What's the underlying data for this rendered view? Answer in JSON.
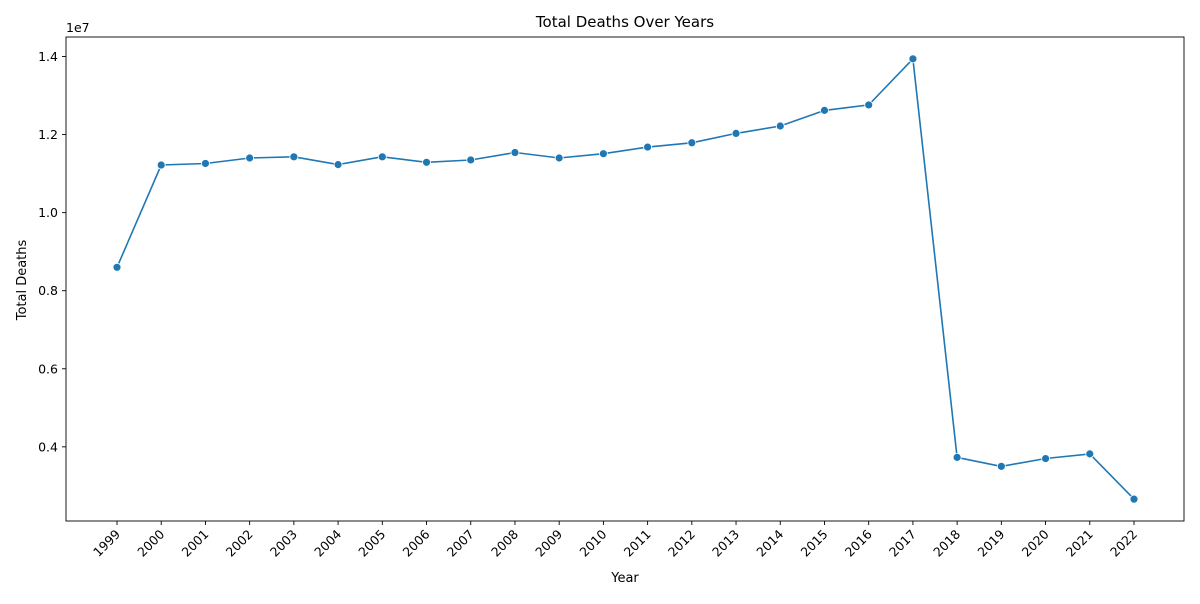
{
  "chart_data": {
    "type": "line",
    "title": "Total Deaths Over Years",
    "xlabel": "Year",
    "ylabel": "Total Deaths",
    "y_offset_label": "1e7",
    "x": [
      "1999",
      "2000",
      "2001",
      "2002",
      "2003",
      "2004",
      "2005",
      "2006",
      "2007",
      "2008",
      "2009",
      "2010",
      "2011",
      "2012",
      "2013",
      "2014",
      "2015",
      "2016",
      "2017",
      "2018",
      "2019",
      "2020",
      "2021",
      "2022"
    ],
    "series": [
      {
        "values": [
          8600000,
          11220000,
          11260000,
          11400000,
          11430000,
          11230000,
          11430000,
          11290000,
          11350000,
          11540000,
          11400000,
          11510000,
          11680000,
          11790000,
          12030000,
          12220000,
          12620000,
          12760000,
          13940000,
          3730000,
          3500000,
          3700000,
          3820000,
          2660000
        ],
        "color": "#1f77b4"
      }
    ],
    "y_ticks": [
      {
        "value": 4000000,
        "label": "0.4"
      },
      {
        "value": 6000000,
        "label": "0.6"
      },
      {
        "value": 8000000,
        "label": "0.8"
      },
      {
        "value": 10000000,
        "label": "1.0"
      },
      {
        "value": 12000000,
        "label": "1.2"
      },
      {
        "value": 14000000,
        "label": "1.4"
      }
    ],
    "ylim": [
      2100000,
      14500000
    ],
    "grid": false,
    "legend": "none"
  }
}
